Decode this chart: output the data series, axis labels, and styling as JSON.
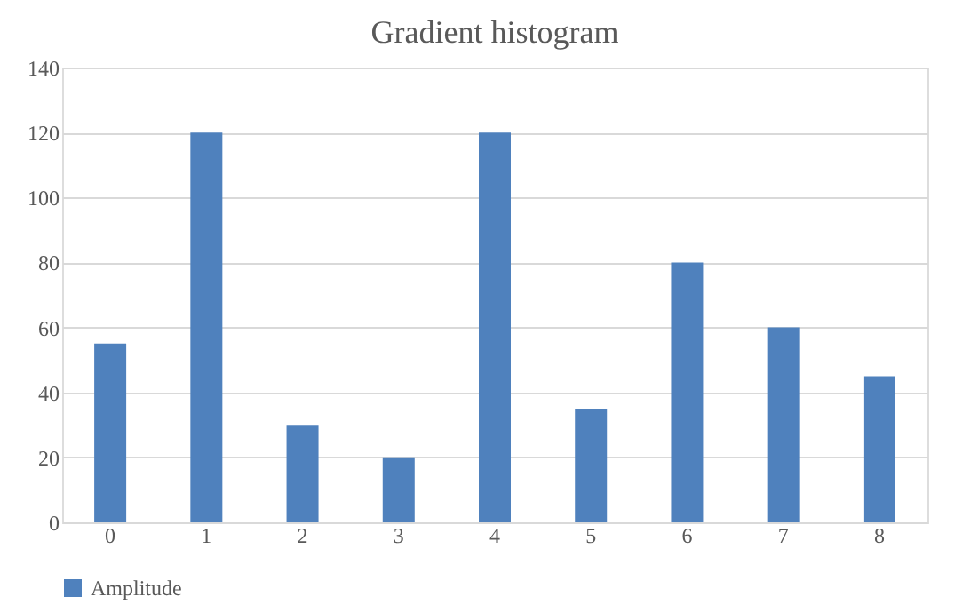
{
  "chart_data": {
    "type": "bar",
    "title": "Gradient histogram",
    "categories": [
      "0",
      "1",
      "2",
      "3",
      "4",
      "5",
      "6",
      "7",
      "8"
    ],
    "series": [
      {
        "name": "Amplitude",
        "color": "#4f81bd",
        "values": [
          55,
          120,
          30,
          20,
          120,
          35,
          80,
          60,
          45
        ]
      }
    ],
    "ylim": [
      0,
      140
    ],
    "yticks": [
      0,
      20,
      40,
      60,
      80,
      100,
      120,
      140
    ],
    "grid": "y",
    "legend": "bottom"
  }
}
